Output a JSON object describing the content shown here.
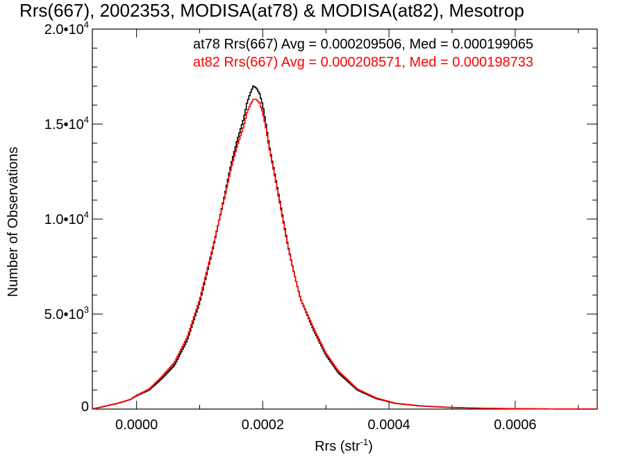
{
  "chart_data": {
    "type": "line",
    "step": true,
    "title": "Rrs(667), 2002353, MODISA(at78) & MODISA(at82), Mesotrop",
    "xlabel_main": "Rrs (str",
    "xlabel_sup": "-1",
    "xlabel_close": ")",
    "ylabel": "Number of Observations",
    "xlim": [
      -7e-05,
      0.00073
    ],
    "ylim": [
      0,
      20000
    ],
    "x_ticks": [
      {
        "value": 0.0,
        "label": "0.0000"
      },
      {
        "value": 0.0002,
        "label": "0.0002"
      },
      {
        "value": 0.0004,
        "label": "0.0004"
      },
      {
        "value": 0.0006,
        "label": "0.0006"
      }
    ],
    "y_ticks": [
      {
        "value": 0,
        "label": "0",
        "sup": ""
      },
      {
        "value": 5000,
        "label": "5.0•10",
        "sup": "3"
      },
      {
        "value": 10000,
        "label": "1.0•10",
        "sup": "4"
      },
      {
        "value": 15000,
        "label": "1.5•10",
        "sup": "4"
      },
      {
        "value": 20000,
        "label": "2.0•10",
        "sup": "4"
      }
    ],
    "annotations": [
      {
        "text": "at78 Rrs(667) Avg = 0.000209506, Med = 0.000199065",
        "color": "#000000"
      },
      {
        "text": "at82 Rrs(667) Avg = 0.000208571, Med = 0.000198733",
        "color": "#ff0000"
      }
    ],
    "series": [
      {
        "color": "#000000",
        "anchors_x": [
          -7e-05,
          -5e-05,
          -3e-05,
          -1e-05,
          0.0,
          2e-05,
          4e-05,
          6e-05,
          8e-05,
          0.0001,
          0.00012,
          0.00014,
          0.00015,
          0.00016,
          0.00017,
          0.000175,
          0.00018,
          0.000185,
          0.00019,
          0.000195,
          0.0002,
          0.000205,
          0.00021,
          0.00022,
          0.00023,
          0.00024,
          0.00025,
          0.00026,
          0.00028,
          0.0003,
          0.00032,
          0.00035,
          0.00038,
          0.00041,
          0.00045,
          0.0005,
          0.00055,
          0.0006,
          0.00065,
          0.0007,
          0.00073
        ],
        "anchors_y": [
          0,
          150,
          300,
          500,
          700,
          1000,
          1600,
          2300,
          3600,
          5600,
          8300,
          11300,
          12900,
          14200,
          15300,
          16100,
          16600,
          17000,
          16900,
          16600,
          16000,
          15000,
          13900,
          12200,
          10400,
          8600,
          7100,
          5800,
          4200,
          2850,
          1900,
          1000,
          550,
          300,
          160,
          80,
          40,
          20,
          10,
          4,
          0
        ]
      },
      {
        "color": "#ff0000",
        "anchors_x": [
          -7e-05,
          -5e-05,
          -3e-05,
          -1e-05,
          0.0,
          2e-05,
          4e-05,
          6e-05,
          8e-05,
          0.0001,
          0.00012,
          0.00014,
          0.00015,
          0.00016,
          0.00017,
          0.000175,
          0.00018,
          0.000185,
          0.00019,
          0.000195,
          0.0002,
          0.000205,
          0.00021,
          0.00022,
          0.00023,
          0.00024,
          0.00025,
          0.00026,
          0.00028,
          0.0003,
          0.00032,
          0.00035,
          0.00038,
          0.00041,
          0.00045,
          0.0005,
          0.00055,
          0.0006,
          0.00065,
          0.0007,
          0.00073
        ],
        "anchors_y": [
          0,
          150,
          300,
          500,
          720,
          1050,
          1700,
          2450,
          3750,
          5750,
          8400,
          11200,
          12700,
          13900,
          14900,
          15600,
          16000,
          16300,
          16300,
          16100,
          15600,
          14800,
          13800,
          12100,
          10300,
          8550,
          7100,
          5800,
          4300,
          2950,
          2000,
          1050,
          580,
          310,
          170,
          85,
          45,
          22,
          10,
          4,
          0
        ]
      }
    ]
  }
}
